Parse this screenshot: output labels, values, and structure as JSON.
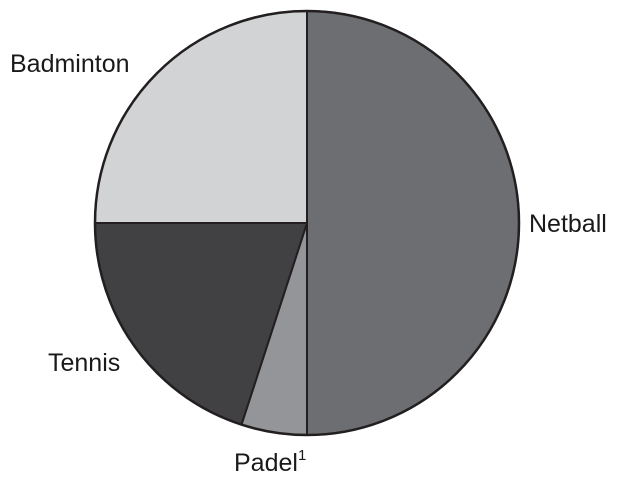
{
  "chart_data": {
    "type": "pie",
    "title": "",
    "slices": [
      {
        "label": "Netball",
        "value": 50,
        "color": "#6d6e71"
      },
      {
        "label": "Padel",
        "footnote": "1",
        "value": 5,
        "color": "#939598"
      },
      {
        "label": "Tennis",
        "value": 20,
        "color": "#414042"
      },
      {
        "label": "Badminton",
        "value": 25,
        "color": "#d1d3d4"
      }
    ],
    "start_angle": "12 o'clock",
    "direction": "clockwise",
    "legend": "none",
    "labels": "outside slices",
    "outline_color": "#231f20"
  }
}
